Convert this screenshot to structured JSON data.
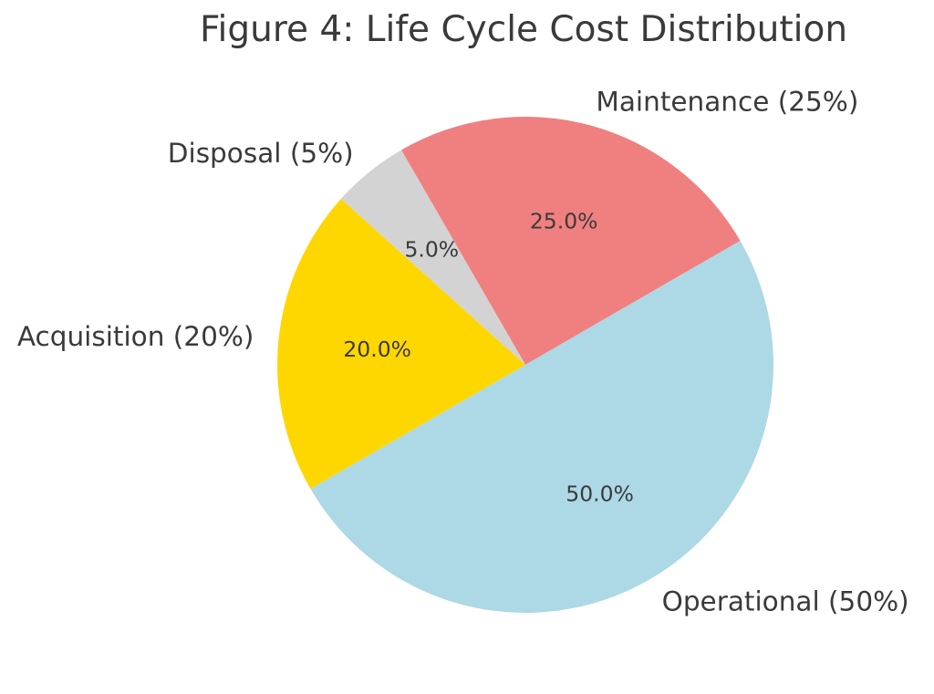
{
  "figure": {
    "title": "Figure 4: Life Cycle Cost Distribution",
    "background_color": "#FFFFFF",
    "text_color": "#3A3A3A"
  },
  "chart_data": {
    "type": "pie",
    "title": "Figure 4: Life Cycle Cost Distribution",
    "legend": "none",
    "start_angle_deg": 120,
    "direction": "clockwise",
    "label_distance": 1.1,
    "pct_distance": 0.6,
    "slices": [
      {
        "label": "Maintenance",
        "display_label": "Maintenance (25%)",
        "value": 25.0,
        "pct_label": "25.0%",
        "color": "#F08080"
      },
      {
        "label": "Operational",
        "display_label": "Operational (50%)",
        "value": 50.0,
        "pct_label": "50.0%",
        "color": "#ADD8E6"
      },
      {
        "label": "Acquisition",
        "display_label": "Acquisition (20%)",
        "value": 20.0,
        "pct_label": "20.0%",
        "color": "#FFD700"
      },
      {
        "label": "Disposal",
        "display_label": "Disposal (5%)",
        "value": 5.0,
        "pct_label": "5.0%",
        "color": "#D3D3D3"
      }
    ]
  }
}
